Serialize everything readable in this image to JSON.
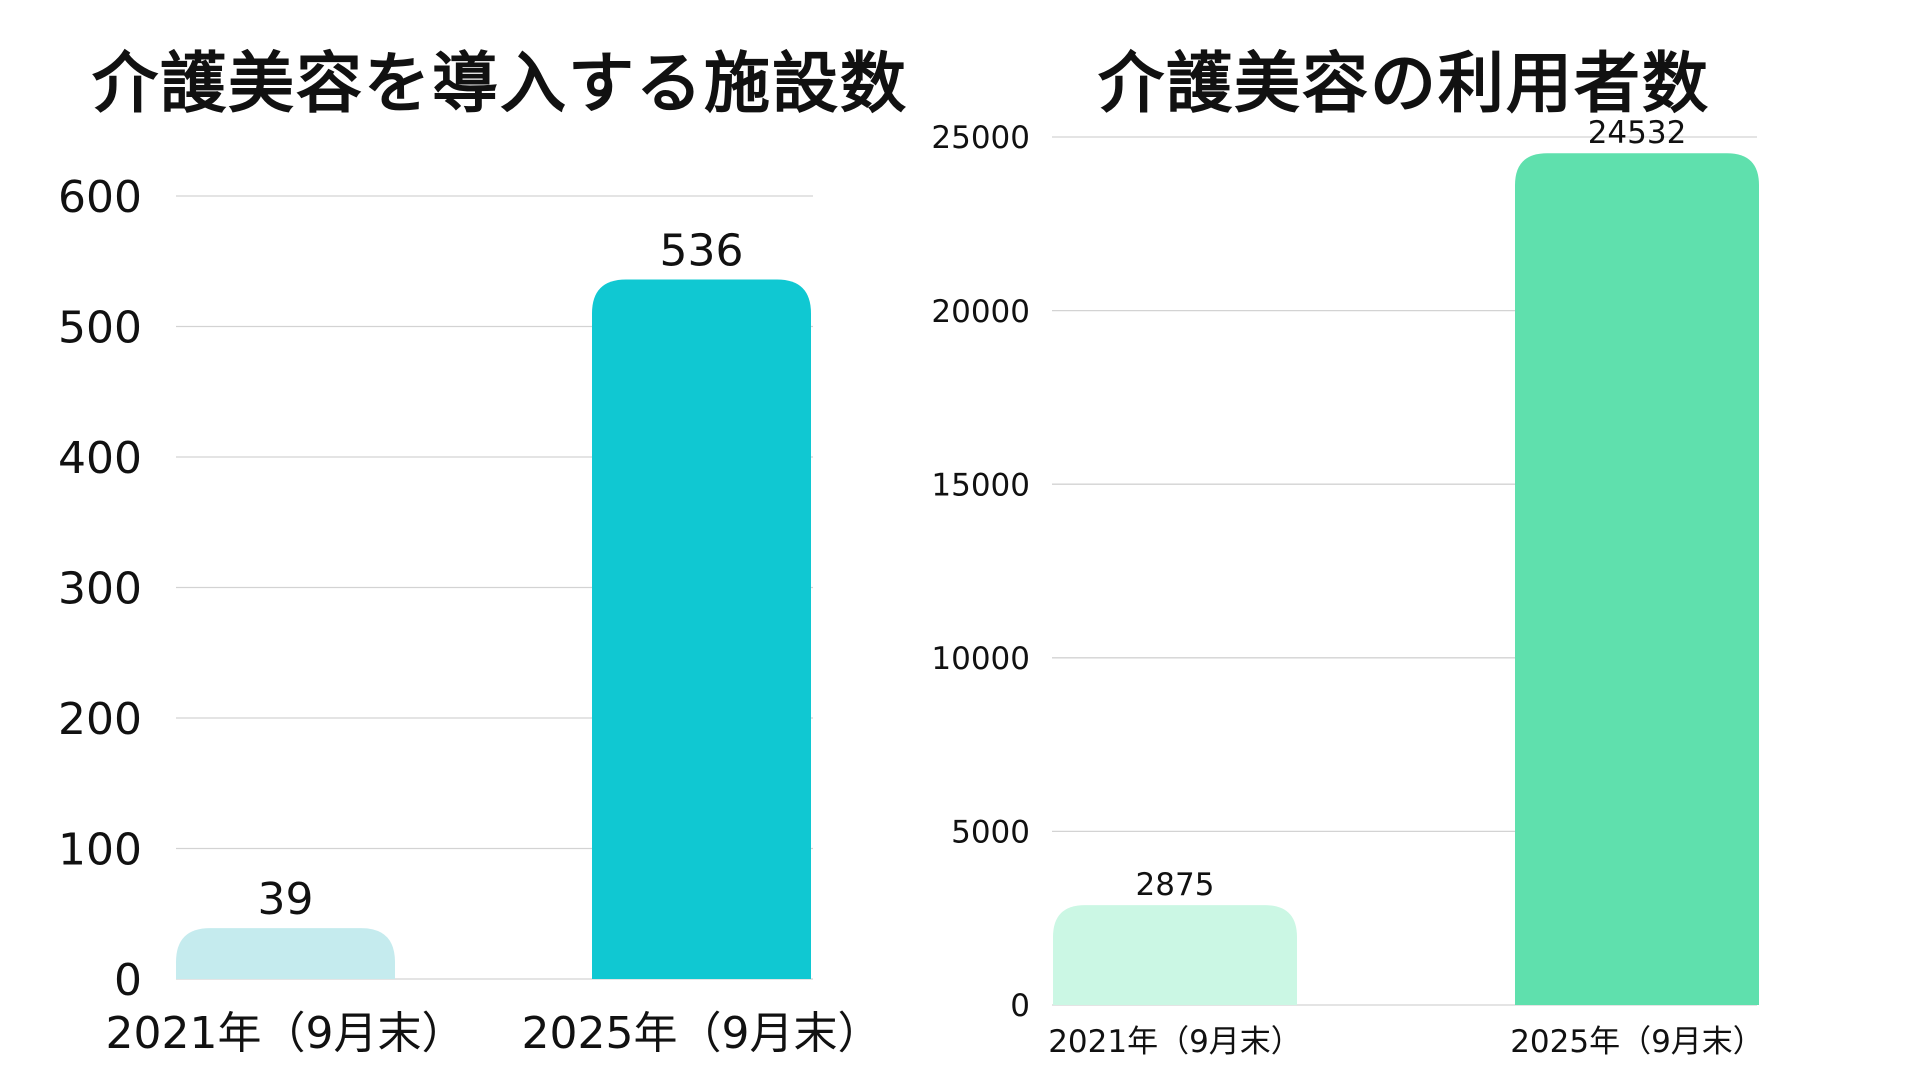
{
  "chart_data": [
    {
      "type": "bar",
      "title": "介護美容を導入する施設数",
      "categories": [
        "2021年（9月末）",
        "2025年（9月末）"
      ],
      "values": [
        39,
        536
      ],
      "data_labels": [
        "39",
        "536"
      ],
      "ylim": [
        0,
        600
      ],
      "yticks": [
        0,
        100,
        200,
        300,
        400,
        500,
        600
      ],
      "grid": true,
      "colors": [
        "#c5ebee",
        "#10c8d2"
      ]
    },
    {
      "type": "bar",
      "title": "介護美容の利用者数",
      "categories": [
        "2021年（9月末）",
        "2025年（9月末）"
      ],
      "values": [
        2875,
        24532
      ],
      "data_labels": [
        "2875",
        "24532"
      ],
      "ylim": [
        0,
        25000
      ],
      "yticks": [
        0,
        5000,
        10000,
        15000,
        20000,
        25000
      ],
      "grid": true,
      "colors": [
        "#cbf7e4",
        "#5fe0ad"
      ]
    }
  ]
}
